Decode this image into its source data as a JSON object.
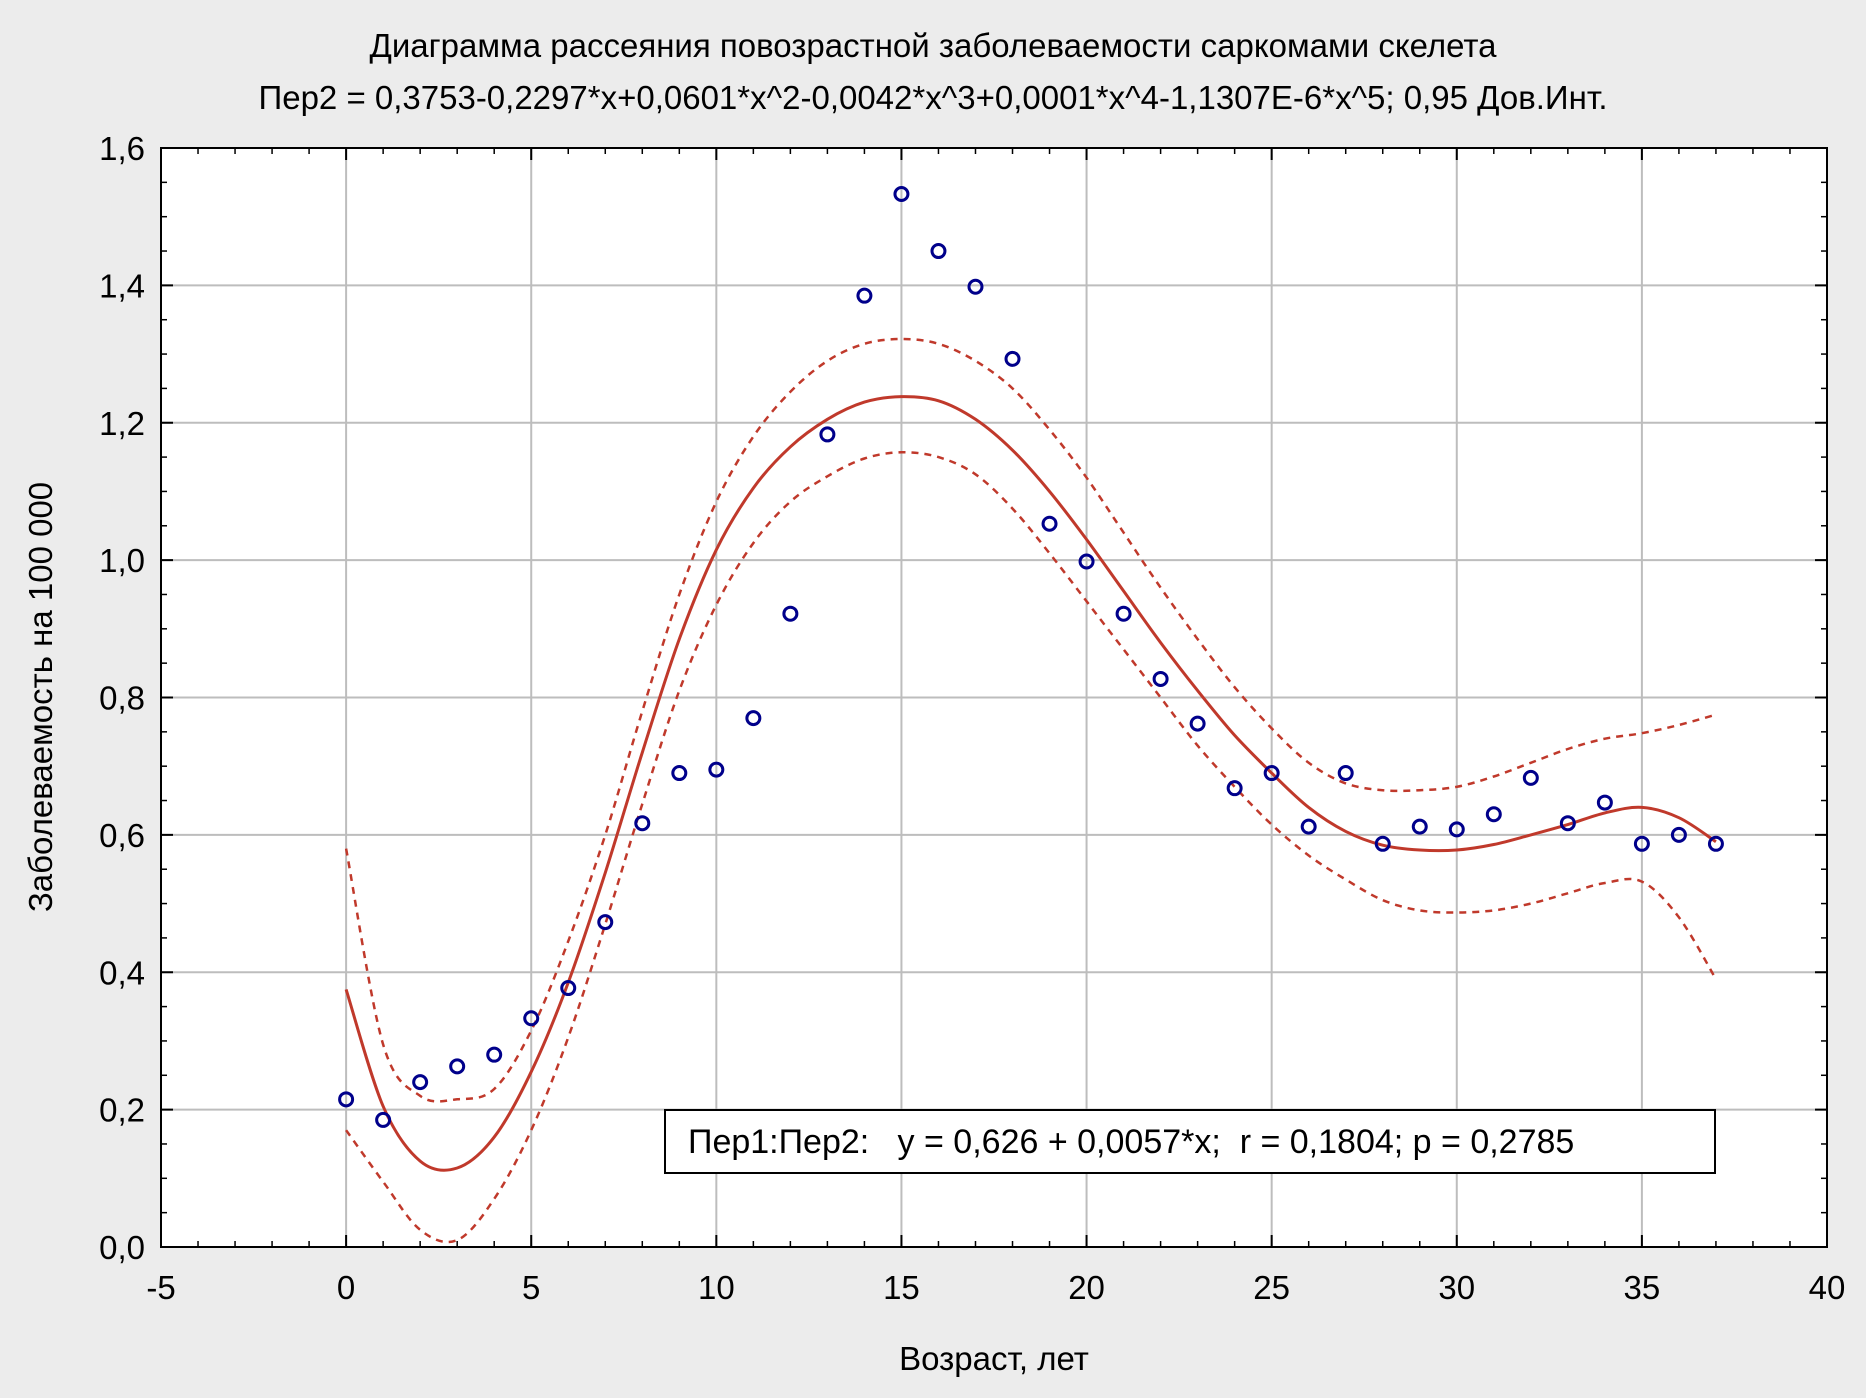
{
  "chart_data": {
    "type": "scatter",
    "title": "Диаграмма рассеяния повозрастной заболеваемости саркомами скелета",
    "subtitle": "Пер2 = 0,3753-0,2297*x+0,0601*x^2-0,0042*x^3+0,0001*x^4-1,1307E-6*x^5; 0,95 Дов.Инт.",
    "xlabel": "Возраст, лет",
    "ylabel": "Заболеваемость на 100 000",
    "xlim": [
      -5,
      40
    ],
    "ylim": [
      0,
      1.6
    ],
    "x_ticks": [
      -5,
      0,
      5,
      10,
      15,
      20,
      25,
      30,
      35,
      40
    ],
    "x_tick_labels": [
      "-5",
      "0",
      "5",
      "10",
      "15",
      "20",
      "25",
      "30",
      "35",
      "40"
    ],
    "y_ticks": [
      0,
      0.2,
      0.4,
      0.6,
      0.8,
      1.0,
      1.2,
      1.4,
      1.6
    ],
    "y_tick_labels": [
      "0,0",
      "0,2",
      "0,4",
      "0,6",
      "0,8",
      "1,0",
      "1,2",
      "1,4",
      "1,6"
    ],
    "grid": true,
    "points": {
      "x": [
        0,
        1,
        2,
        3,
        4,
        5,
        6,
        7,
        8,
        9,
        10,
        11,
        12,
        13,
        14,
        15,
        16,
        17,
        18,
        19,
        20,
        21,
        22,
        23,
        24,
        25,
        26,
        27,
        28,
        29,
        30,
        31,
        32,
        33,
        34,
        35,
        36,
        37
      ],
      "y": [
        0.215,
        0.185,
        0.24,
        0.263,
        0.28,
        0.333,
        0.377,
        0.473,
        0.617,
        0.69,
        0.695,
        0.77,
        0.922,
        1.183,
        1.385,
        1.533,
        1.45,
        1.398,
        1.293,
        1.053,
        0.998,
        0.922,
        0.827,
        0.762,
        0.668,
        0.69,
        0.612,
        0.69,
        0.587,
        0.612,
        0.608,
        0.63,
        0.683,
        0.617,
        0.647,
        0.587,
        0.6,
        0.587
      ]
    },
    "fit_curve": {
      "x": [
        0,
        1,
        2,
        3,
        4,
        5,
        6,
        7,
        8,
        9,
        10,
        11,
        12,
        13,
        14,
        15,
        16,
        17,
        18,
        19,
        20,
        21,
        22,
        23,
        24,
        25,
        26,
        27,
        28,
        29,
        30,
        31,
        32,
        33,
        34,
        35,
        36,
        37
      ],
      "y": [
        0.375,
        0.205,
        0.125,
        0.115,
        0.16,
        0.255,
        0.385,
        0.545,
        0.72,
        0.885,
        1.015,
        1.105,
        1.165,
        1.205,
        1.23,
        1.238,
        1.232,
        1.205,
        1.16,
        1.1,
        1.03,
        0.955,
        0.88,
        0.81,
        0.745,
        0.69,
        0.64,
        0.605,
        0.585,
        0.578,
        0.578,
        0.586,
        0.6,
        0.615,
        0.632,
        0.64,
        0.625,
        0.59
      ]
    },
    "ci_upper": {
      "x": [
        0,
        1,
        2,
        3,
        4,
        5,
        6,
        7,
        8,
        9,
        10,
        11,
        12,
        13,
        14,
        15,
        16,
        17,
        18,
        19,
        20,
        21,
        22,
        23,
        24,
        25,
        26,
        27,
        28,
        29,
        30,
        31,
        32,
        33,
        34,
        35,
        36,
        37
      ],
      "y": [
        0.58,
        0.295,
        0.22,
        0.215,
        0.23,
        0.315,
        0.445,
        0.6,
        0.78,
        0.95,
        1.085,
        1.18,
        1.245,
        1.29,
        1.315,
        1.322,
        1.315,
        1.29,
        1.25,
        1.19,
        1.12,
        1.04,
        0.96,
        0.885,
        0.815,
        0.755,
        0.705,
        0.675,
        0.665,
        0.665,
        0.67,
        0.685,
        0.705,
        0.725,
        0.74,
        0.748,
        0.76,
        0.775
      ]
    },
    "ci_lower": {
      "x": [
        0,
        1,
        2,
        3,
        4,
        5,
        6,
        7,
        8,
        9,
        10,
        11,
        12,
        13,
        14,
        15,
        16,
        17,
        18,
        19,
        20,
        21,
        22,
        23,
        24,
        25,
        26,
        27,
        28,
        29,
        30,
        31,
        32,
        33,
        34,
        35,
        36,
        37
      ],
      "y": [
        0.17,
        0.095,
        0.025,
        0.01,
        0.07,
        0.17,
        0.305,
        0.47,
        0.645,
        0.81,
        0.935,
        1.025,
        1.085,
        1.122,
        1.148,
        1.157,
        1.15,
        1.125,
        1.075,
        1.01,
        0.94,
        0.87,
        0.8,
        0.73,
        0.67,
        0.615,
        0.57,
        0.535,
        0.505,
        0.49,
        0.487,
        0.49,
        0.5,
        0.515,
        0.53,
        0.532,
        0.48,
        0.39
      ]
    },
    "regression_legend": "Пер1:Пер2:   y = 0,626 + 0,0057*x;  r = 0,1804; p = 0,2785",
    "colors": {
      "points": "#00008b",
      "fit": "#c0392b",
      "ci": "#c0392b",
      "grid": "#bdbdbd",
      "background": "#ececec",
      "plot_background": "#ffffff"
    }
  }
}
